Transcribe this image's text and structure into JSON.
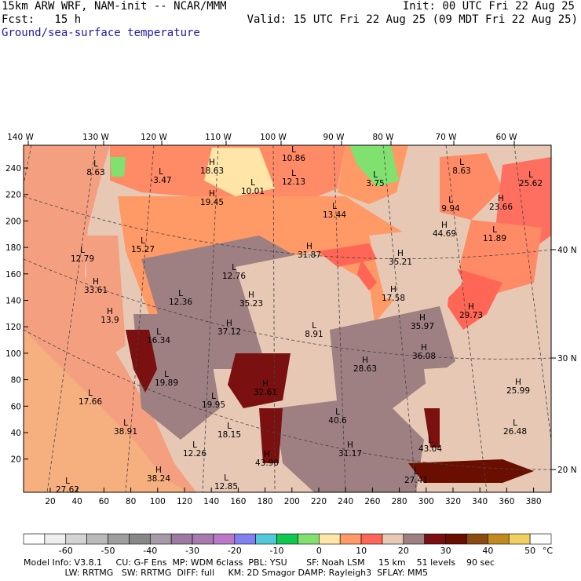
{
  "header": {
    "model": "15km ARW WRF, NAM-init -- NCAR/MMM",
    "init": "Init: 00 UTC Fri 22 Aug 25",
    "fcst": "Fcst:   15 h",
    "valid": "Valid: 15 UTC Fri 22 Aug 25 (09 MDT Fri 22 Aug 25)",
    "field": "Ground/sea-surface temperature"
  },
  "top_axis": [
    "140 W",
    "130 W",
    "120 W",
    "110 W",
    "100 W",
    "90 W",
    "80 W",
    "70 W",
    "60 W"
  ],
  "right_axis": [
    "40 N",
    "30 N",
    "20 N"
  ],
  "left_axis": [
    "240",
    "220",
    "200",
    "180",
    "160",
    "140",
    "120",
    "100",
    "80",
    "60",
    "40",
    "20"
  ],
  "bottom_axis": [
    "20",
    "40",
    "60",
    "80",
    "100",
    "120",
    "140",
    "160",
    "180",
    "200",
    "220",
    "240",
    "260",
    "280",
    "300",
    "320",
    "340",
    "360",
    "380"
  ],
  "extrema": [
    {
      "type": "L",
      "value": "8.63"
    },
    {
      "type": "L",
      "value": "-3.47"
    },
    {
      "type": "H",
      "value": "18.63"
    },
    {
      "type": "H",
      "value": "19.45"
    },
    {
      "type": "L",
      "value": "10.01"
    },
    {
      "type": "L",
      "value": "10.86"
    },
    {
      "type": "L",
      "value": "12.13"
    },
    {
      "type": "L",
      "value": "3.75"
    },
    {
      "type": "L",
      "value": "13.44"
    },
    {
      "type": "L",
      "value": "8.63"
    },
    {
      "type": "L",
      "value": "25.62"
    },
    {
      "type": "H",
      "value": "23.66"
    },
    {
      "type": "L",
      "value": "9.94"
    },
    {
      "type": "H",
      "value": "44.69"
    },
    {
      "type": "L",
      "value": "11.89"
    },
    {
      "type": "L",
      "value": "12.79"
    },
    {
      "type": "L",
      "value": "15.27"
    },
    {
      "type": "H",
      "value": "31.87"
    },
    {
      "type": "H",
      "value": "35.21"
    },
    {
      "type": "H",
      "value": "33.61"
    },
    {
      "type": "L",
      "value": "12.76"
    },
    {
      "type": "L",
      "value": "12.36"
    },
    {
      "type": "H",
      "value": "35.23"
    },
    {
      "type": "H",
      "value": "17.58"
    },
    {
      "type": "H",
      "value": "13.9"
    },
    {
      "type": "H",
      "value": "37.12"
    },
    {
      "type": "L",
      "value": "8.91"
    },
    {
      "type": "H",
      "value": "35.97"
    },
    {
      "type": "H",
      "value": "29.73"
    },
    {
      "type": "L",
      "value": "16.34"
    },
    {
      "type": "H",
      "value": "36.08"
    },
    {
      "type": "H",
      "value": "28.63"
    },
    {
      "type": "L",
      "value": "19.89"
    },
    {
      "type": "H",
      "value": "32.61"
    },
    {
      "type": "H",
      "value": "25.99"
    },
    {
      "type": "L",
      "value": "17.66"
    },
    {
      "type": "L",
      "value": "19.95"
    },
    {
      "type": "L",
      "value": "40.6"
    },
    {
      "type": "L",
      "value": "38.91"
    },
    {
      "type": "L",
      "value": "18.15"
    },
    {
      "type": "L",
      "value": "26.48"
    },
    {
      "type": "L",
      "value": "12.26"
    },
    {
      "type": "H",
      "value": "31.17"
    },
    {
      "type": "L",
      "value": "43.04"
    },
    {
      "type": "H",
      "value": "43.90"
    },
    {
      "type": "H",
      "value": "38.24"
    },
    {
      "type": "L",
      "value": "12.85"
    },
    {
      "type": "L",
      "value": "27.62"
    },
    {
      "type": "L",
      "value": "27.41"
    }
  ],
  "colorbar": {
    "labels": [
      "-60",
      "-50",
      "-40",
      "-30",
      "-20",
      "-10",
      "0",
      "10",
      "20",
      "30",
      "40",
      "50"
    ],
    "unit": "°C",
    "colors": [
      "#ffffff",
      "#eeeeee",
      "#d4d4d4",
      "#bababa",
      "#9e9e9e",
      "#878787",
      "#a59aa8",
      "#9c7aa1",
      "#a77ab0",
      "#b979c6",
      "#8080f0",
      "#50c8d8",
      "#10c850",
      "#80e070",
      "#ffe6a8",
      "#ff9966",
      "#ff6655",
      "#e6c8b4",
      "#9e7f82",
      "#7a1010",
      "#6a0f00",
      "#8a4a10",
      "#c08a20",
      "#f0d060",
      "#ffffff"
    ]
  },
  "footer": {
    "line1": "Model Info: V3.8.1     CU: G-F Ens  MP: WDM 6class  PBL: YSU       SF: Noah LSM     15 km    51 levels    90 sec",
    "line2": "               LW: RRTMG   SW: RRTMG  DIFF: full     KM: 2D Smagor DAMP: Rayleigh3  SFLAY: MM5"
  }
}
